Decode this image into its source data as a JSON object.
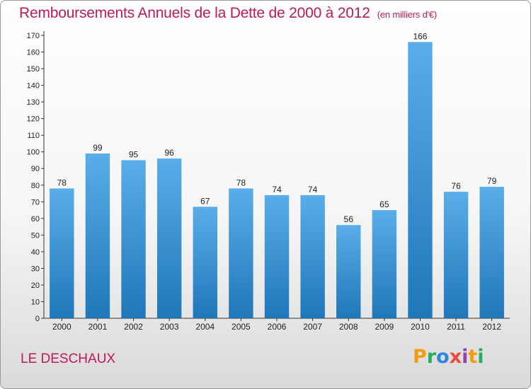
{
  "header": {
    "title": "Remboursements Annuels de la Dette de 2000 à 2012",
    "unit": "(en milliers d'€)"
  },
  "footer": {
    "commune": "LE DESCHAUX",
    "logo": [
      "P",
      "r",
      "o",
      "x",
      "i",
      "t",
      "i"
    ],
    "logo_colors": [
      "#f39c12",
      "#27ae60",
      "#2e86de",
      "#e74c3c",
      "#8e44ad",
      "#f39c12",
      "#27ae60"
    ]
  },
  "colors": {
    "bar_top": "#5aade8",
    "bar_bottom": "#1f77b9"
  },
  "chart_data": {
    "type": "bar",
    "title": "Remboursements Annuels de la Dette de 2000 à 2012",
    "categories": [
      "2000",
      "2001",
      "2002",
      "2003",
      "2004",
      "2005",
      "2006",
      "2007",
      "2008",
      "2009",
      "2010",
      "2011",
      "2012"
    ],
    "values": [
      78,
      99,
      95,
      96,
      67,
      78,
      74,
      74,
      56,
      65,
      166,
      76,
      79
    ],
    "ylim": [
      0,
      170
    ],
    "yticks": [
      0,
      10,
      20,
      30,
      40,
      50,
      60,
      70,
      80,
      90,
      100,
      110,
      120,
      130,
      140,
      150,
      160,
      170
    ],
    "grid": false
  }
}
